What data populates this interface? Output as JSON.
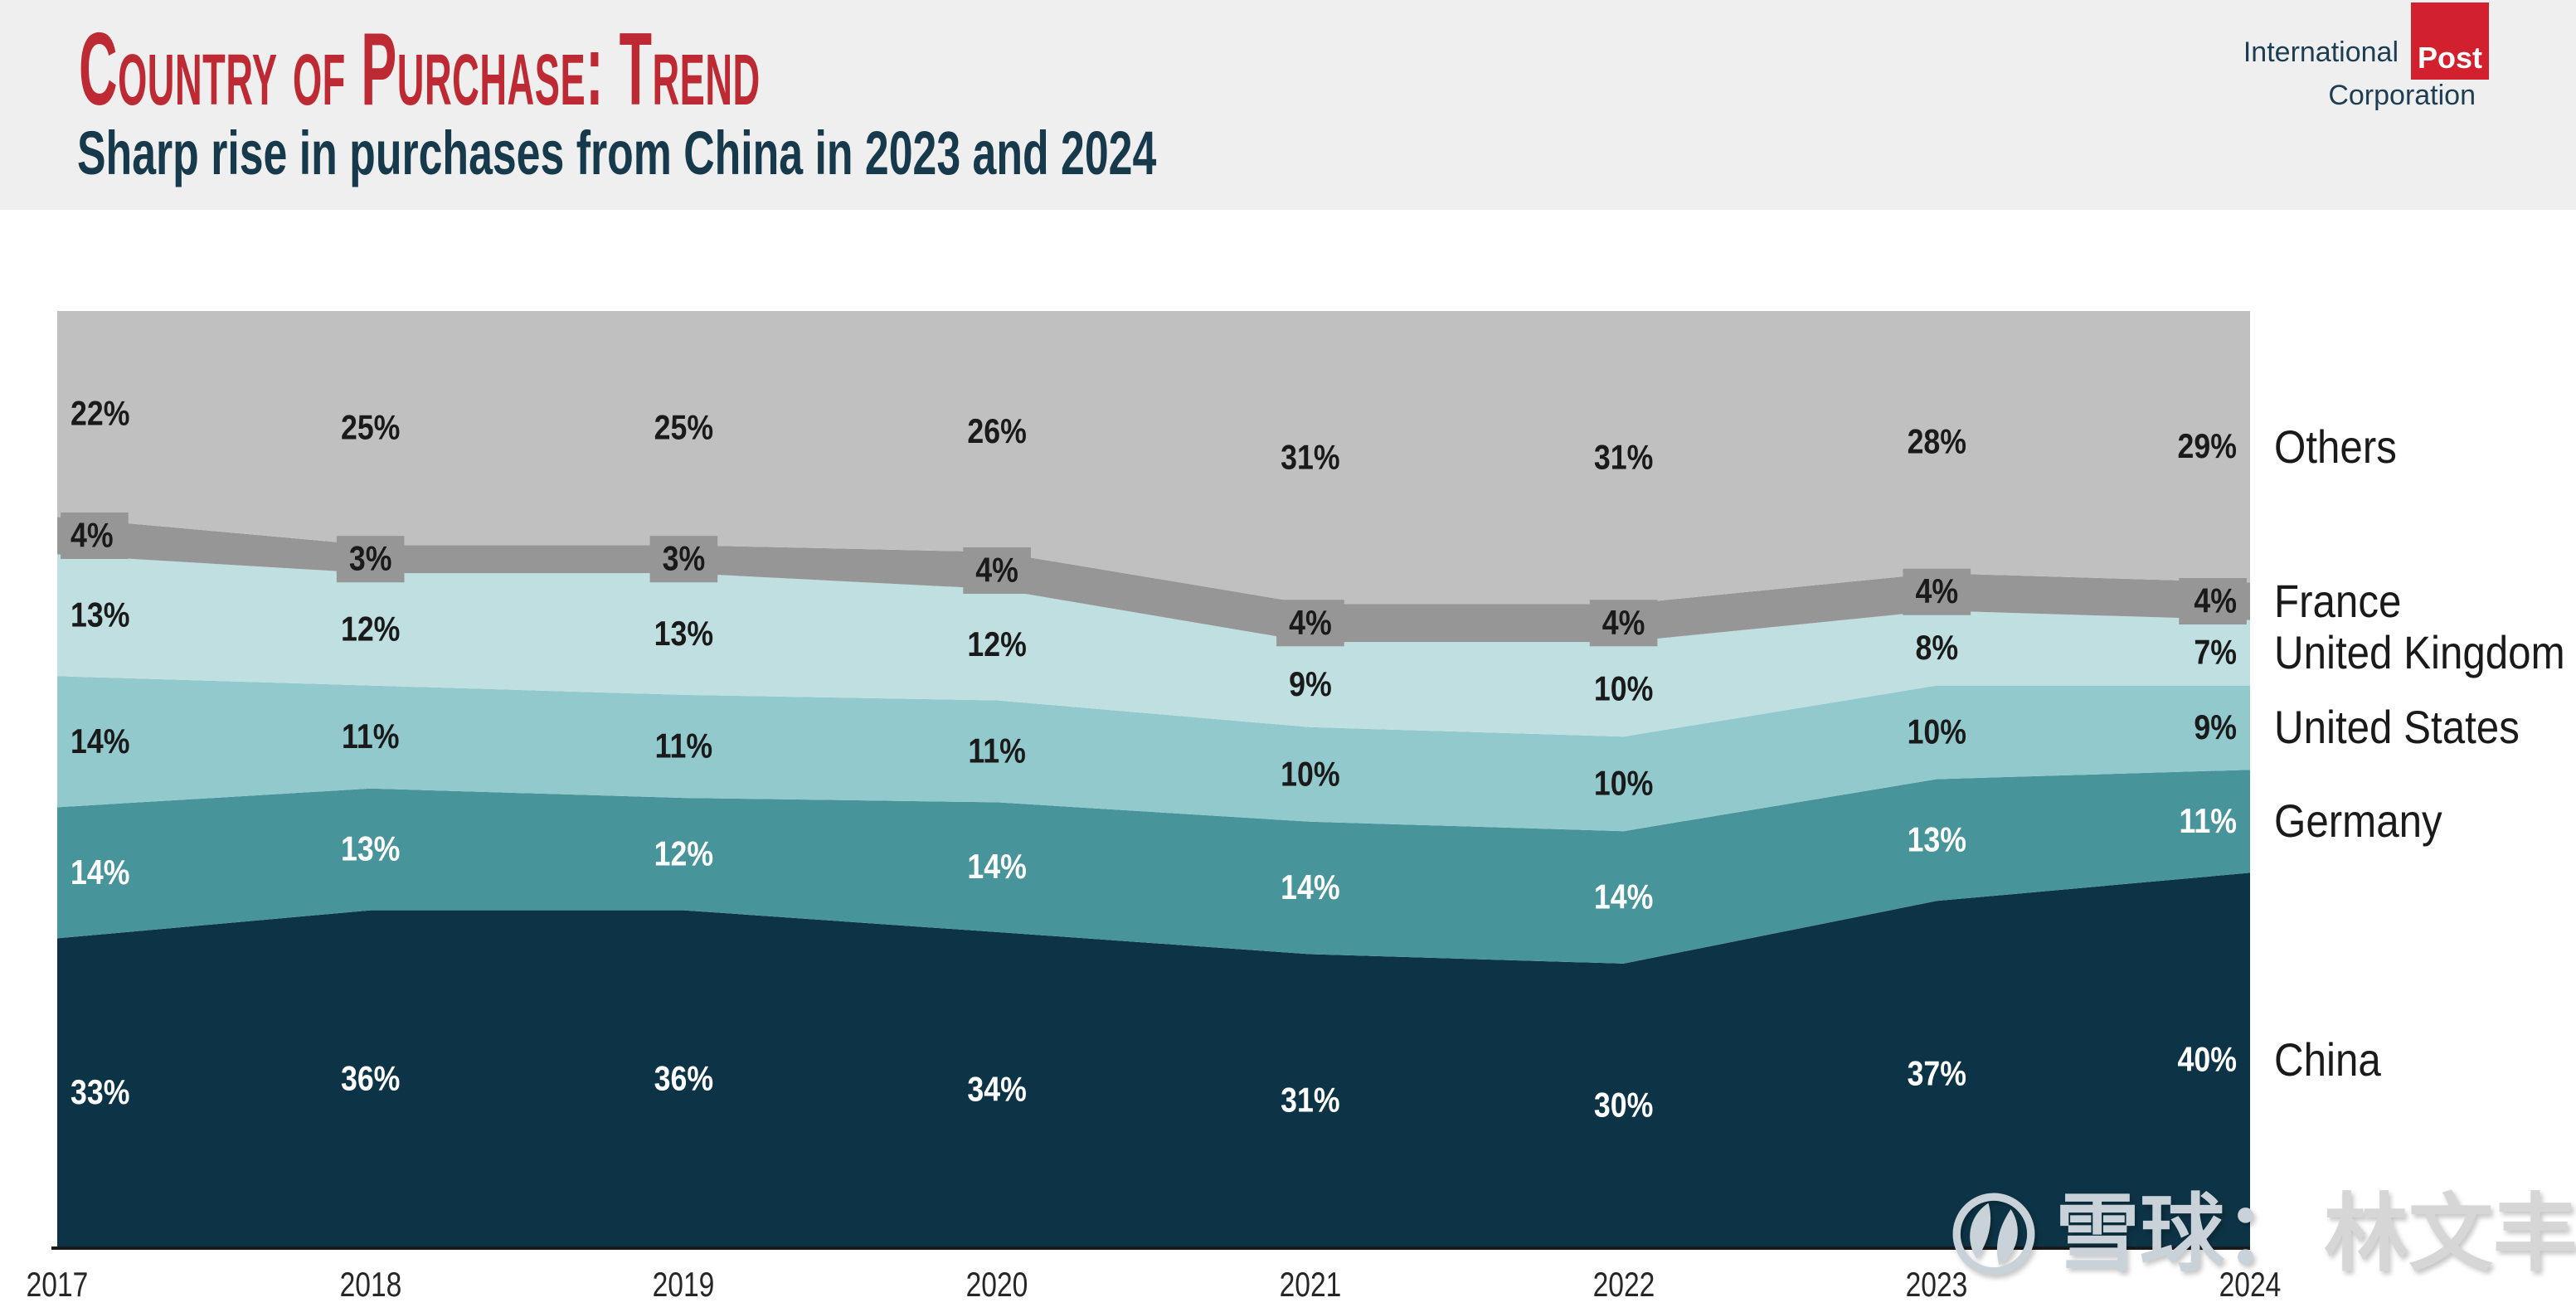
{
  "header": {
    "title": "Country of Purchase: Trend",
    "subtitle": "Sharp rise in purchases from China in 2023 and 2024",
    "title_color": "#be2a33",
    "subtitle_color": "#17394c",
    "background": "#efefef",
    "logo": {
      "line1": "International",
      "post": "Post",
      "line2": "Corporation",
      "red": "#d2202f",
      "navy": "#1d3d52"
    }
  },
  "chart_data": {
    "type": "area",
    "stacked": true,
    "unit": "%",
    "grid": false,
    "legend_position": "right",
    "series_order": "bottom-to-top",
    "x": [
      "2017",
      "2018",
      "2019",
      "2020",
      "2021",
      "2022",
      "2023",
      "2024"
    ],
    "series": [
      {
        "name": "China",
        "color": "#0d3446",
        "label_color": "#ffffff",
        "label_box": false,
        "values": [
          33,
          36,
          36,
          34,
          31,
          30,
          37,
          40
        ]
      },
      {
        "name": "Germany",
        "color": "#47949a",
        "label_color": "#ffffff",
        "label_box": false,
        "values": [
          14,
          13,
          12,
          14,
          14,
          14,
          13,
          11
        ]
      },
      {
        "name": "United States",
        "color": "#92c9cc",
        "label_color": "#1a1a1a",
        "label_box": false,
        "values": [
          14,
          11,
          11,
          11,
          10,
          10,
          10,
          9
        ]
      },
      {
        "name": "United Kingdom",
        "color": "#bfdfe1",
        "label_color": "#1a1a1a",
        "label_box": false,
        "values": [
          13,
          12,
          13,
          12,
          9,
          10,
          8,
          7
        ]
      },
      {
        "name": "France",
        "color": "#969696",
        "label_color": "#1a1a1a",
        "label_box": true,
        "values": [
          4,
          3,
          3,
          4,
          4,
          4,
          4,
          4
        ]
      },
      {
        "name": "Others",
        "color": "#c0c0c0",
        "label_color": "#1a1a1a",
        "label_box": false,
        "values": [
          22,
          25,
          25,
          26,
          31,
          31,
          28,
          29
        ]
      }
    ],
    "axis_color": "#1a1a1a",
    "year_label_color": "#262626"
  },
  "watermark": {
    "prefix": "雪球：",
    "name": "林文丰",
    "prefix_color": "#c9d2d8",
    "name_color": "#d6d6d6",
    "logo_color": "#c9d2d8"
  }
}
